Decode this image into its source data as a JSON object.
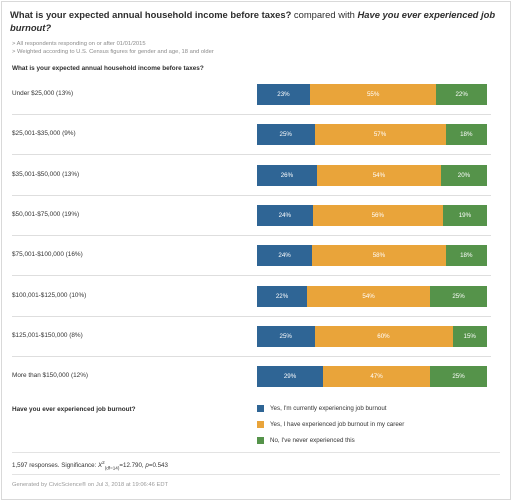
{
  "title": {
    "question1": "What is your expected annual household income before taxes?",
    "connector": " compared with ",
    "question2": "Have you ever experienced job burnout?"
  },
  "notes": [
    "> All respondents responding on or after 01/01/2015",
    "> Weighted according to U.S. Census figures for gender and age, 18 and older"
  ],
  "question_label": "What is your expected annual household income before taxes?",
  "colors": {
    "current": "#2f6595",
    "career": "#e9a43a",
    "never": "#55934a"
  },
  "chart_data": {
    "type": "bar",
    "stacked": true,
    "orientation": "horizontal",
    "percent_scale": true,
    "categories": [
      "Under $25,000 (13%)",
      "$25,001-$35,000 (9%)",
      "$35,001-$50,000 (13%)",
      "$50,001-$75,000 (19%)",
      "$75,001-$100,000 (16%)",
      "$100,001-$125,000 (10%)",
      "$125,001-$150,000 (8%)",
      "More than $150,000 (12%)"
    ],
    "series": [
      {
        "name": "Yes, I'm currently experiencing job burnout",
        "color": "#2f6595",
        "values": [
          23,
          25,
          26,
          24,
          24,
          22,
          25,
          29
        ]
      },
      {
        "name": "Yes, I have experienced job burnout in my career",
        "color": "#e9a43a",
        "values": [
          55,
          57,
          54,
          56,
          58,
          54,
          60,
          47
        ]
      },
      {
        "name": "No, I've never experienced this",
        "color": "#55934a",
        "values": [
          22,
          18,
          20,
          19,
          18,
          25,
          15,
          25
        ]
      }
    ],
    "value_labels": [
      [
        "23%",
        "55%",
        "22%"
      ],
      [
        "25%",
        "57%",
        "18%"
      ],
      [
        "26%",
        "54%",
        "20%"
      ],
      [
        "24%",
        "56%",
        "19%"
      ],
      [
        "24%",
        "58%",
        "18%"
      ],
      [
        "22%",
        "54%",
        "25%"
      ],
      [
        "25%",
        "60%",
        "15%"
      ],
      [
        "29%",
        "47%",
        "25%"
      ]
    ]
  },
  "legend": {
    "title": "Have you ever experienced job burnout?",
    "items": [
      {
        "label": "Yes, I'm currently experiencing job burnout",
        "color": "#2f6595"
      },
      {
        "label": "Yes, I have experienced job burnout in my career",
        "color": "#e9a43a"
      },
      {
        "label": "No, I've never experienced this",
        "color": "#55934a"
      }
    ]
  },
  "footer": {
    "responses": "1,597 responses. Significance: ",
    "chi": "X",
    "chi_sup": "2",
    "chi_sub": "(df=14)",
    "stat": "=12.790, ",
    "p_label": "p",
    "p_value": "=0.543",
    "generated": "Generated by CivicScience® on Jul 3, 2018 at 19:06:46 EDT"
  }
}
